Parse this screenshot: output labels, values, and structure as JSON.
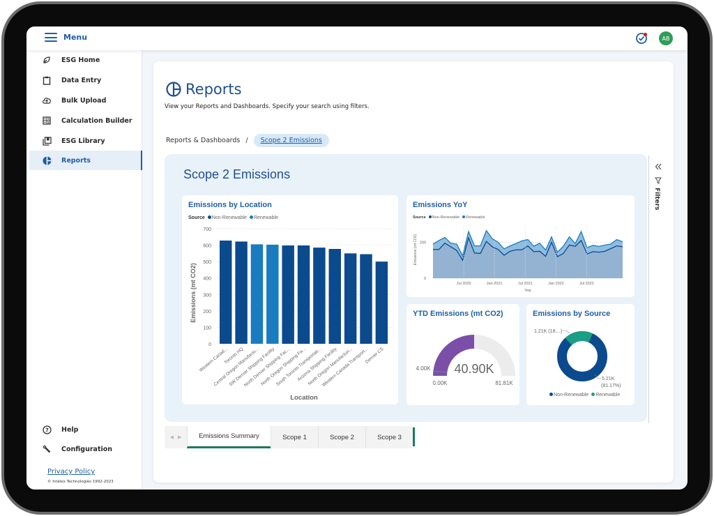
{
  "topbar": {
    "menu_label": "Menu",
    "avatar_initials": "AB",
    "icons": {
      "menu": "hamburger-icon",
      "tasks": "task-check-icon",
      "notification_color": "#c62828"
    }
  },
  "sidebar": {
    "items": [
      {
        "label": "ESG Home",
        "icon": "leaf-icon"
      },
      {
        "label": "Data Entry",
        "icon": "clipboard-icon"
      },
      {
        "label": "Bulk Upload",
        "icon": "cloud-upload-icon"
      },
      {
        "label": "Calculation Builder",
        "icon": "calculator-icon"
      },
      {
        "label": "ESG Library",
        "icon": "library-icon"
      },
      {
        "label": "Reports",
        "icon": "pie-chart-icon",
        "active": true
      }
    ],
    "bottom_items": [
      {
        "label": "Help",
        "icon": "help-circle-icon"
      },
      {
        "label": "Configuration",
        "icon": "wrench-icon"
      }
    ],
    "privacy_policy": "Privacy Policy",
    "copyright": "© Intelex Technologies 1992-2023"
  },
  "main": {
    "title": "Reports",
    "subtitle": "View your Reports and Dashboards. Specify your search using filters.",
    "breadcrumb": {
      "parent": "Reports & Dashboards",
      "separator": "/",
      "current": "Scope 2 Emissions"
    }
  },
  "report": {
    "title": "Scope 2 Emissions",
    "filters_label": "Filters",
    "tabs": [
      {
        "label": "Emissions Summary",
        "active": true
      },
      {
        "label": "Scope 1"
      },
      {
        "label": "Scope 2"
      },
      {
        "label": "Scope 3"
      }
    ]
  },
  "visuals": {
    "location": {
      "title": "Emissions by Location",
      "legend_title": "Source",
      "legend": [
        "Non-Renewable",
        "Renewable"
      ],
      "ylabel": "Emissions (mt CO2)",
      "xlabel": "Location",
      "yticks": [
        "700",
        "600",
        "500",
        "400",
        "300",
        "200",
        "100",
        "0"
      ]
    },
    "yoy": {
      "title": "Emissions YoY",
      "legend_title": "Source",
      "legend": [
        "Non-Renewable",
        "Renewable"
      ],
      "ylabel": "Emissions (mt CO2)",
      "xlabel": "Year",
      "yticks": [
        "200",
        "0"
      ],
      "xticks": [
        "Jul 2020",
        "Jan 2021",
        "Jul 2021",
        "Jan 2022",
        "Jul 2022"
      ]
    },
    "ytd": {
      "title": "YTD Emissions (mt CO2)",
      "value": "40.90K",
      "min": "0.00K",
      "max": "81.81K",
      "target": "4.00K"
    },
    "source": {
      "title": "Emissions by Source",
      "label_renewable": "1.21K (18....)",
      "label_nonrenewable_1": "5.21K",
      "label_nonrenewable_2": "(81.17%)",
      "legend": [
        "Non-Renewable",
        "Renewable"
      ]
    }
  },
  "colors": {
    "brand": "#1f5fa3",
    "non_renewable": "#0b4a8c",
    "renewable": "#1a7bc0",
    "renewable_donut": "#1a9e85",
    "gauge_fill": "#7b4fa8",
    "tab_accent": "#1a7a5a"
  },
  "chart_data": [
    {
      "type": "bar",
      "title": "Emissions by Location",
      "xlabel": "Location",
      "ylabel": "Emissions (mt CO2)",
      "ylim": [
        0,
        700
      ],
      "categories": [
        "Western Canad...",
        "Toronto HQ",
        "Central Oregon Manufactu...",
        "SW Denver Shipping Facility",
        "North Denver Shipping Fac...",
        "North Oregon Shipping Fa...",
        "South Toronto Transportati...",
        "Arizona Shipping Facility",
        "North Oregon Manufacturi...",
        "Western Canada Transport...",
        "Denver CS"
      ],
      "values": [
        628,
        622,
        605,
        603,
        598,
        598,
        585,
        577,
        550,
        545,
        500
      ],
      "source": [
        "Non-Renewable",
        "Non-Renewable",
        "Renewable",
        "Renewable",
        "Non-Renewable",
        "Non-Renewable",
        "Non-Renewable",
        "Non-Renewable",
        "Non-Renewable",
        "Non-Renewable",
        "Non-Renewable"
      ],
      "legend": [
        "Non-Renewable",
        "Renewable"
      ],
      "grid": true
    },
    {
      "type": "area",
      "title": "Emissions YoY",
      "xlabel": "Year",
      "ylabel": "Emissions (mt CO2)",
      "ylim": [
        0,
        260
      ],
      "xticks": [
        "Jul 2020",
        "Jan 2021",
        "Jul 2021",
        "Jan 2022",
        "Jul 2022"
      ],
      "series": [
        {
          "name": "Non-Renewable",
          "values": [
            160,
            160,
            195,
            175,
            155,
            100,
            225,
            140,
            138,
            205,
            175,
            160,
            128,
            150,
            158,
            158,
            180,
            148,
            150,
            122,
            200,
            120,
            138,
            185,
            178,
            210,
            135,
            148,
            145,
            150,
            165,
            180,
            175
          ]
        },
        {
          "name": "Renewable",
          "values": [
            30,
            50,
            32,
            20,
            35,
            25,
            35,
            40,
            42,
            60,
            45,
            40,
            35,
            30,
            35,
            50,
            35,
            30,
            45,
            35,
            30,
            25,
            40,
            45,
            15,
            50,
            35,
            35,
            32,
            35,
            25,
            35,
            28
          ]
        }
      ],
      "grid": true
    },
    {
      "type": "gauge",
      "title": "YTD Emissions (mt CO2)",
      "value": 40.9,
      "min": 0.0,
      "max": 81.81,
      "target": 4.0,
      "unit": "K"
    },
    {
      "type": "pie",
      "title": "Emissions by Source",
      "categories": [
        "Non-Renewable",
        "Renewable"
      ],
      "values": [
        5.21,
        1.21
      ],
      "percentages": [
        81.17,
        18.83
      ],
      "donut": true
    }
  ]
}
